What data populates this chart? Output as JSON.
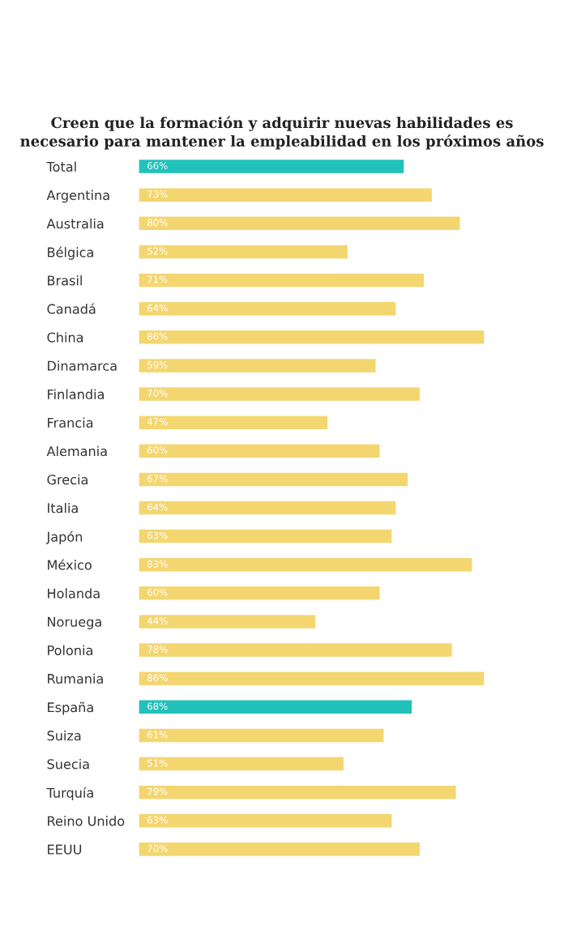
{
  "chart_data": {
    "type": "bar",
    "orientation": "horizontal",
    "title": "Creen que la formación y adquirir nuevas habilidades es\nnecesario para mantener la empleabilidad en los próximos años",
    "categories": [
      "Total",
      "Argentina",
      "Australia",
      "Bélgica",
      "Brasil",
      "Canadá",
      "China",
      "Dinamarca",
      "Finlandia",
      "Francia",
      "Alemania",
      "Grecia",
      "Italia",
      "Japón",
      "México",
      "Holanda",
      "Noruega",
      "Polonia",
      "Rumania",
      "España",
      "Suiza",
      "Suecia",
      "Turquía",
      "Reino Unido",
      "EEUU"
    ],
    "values": [
      66,
      73,
      80,
      52,
      71,
      64,
      86,
      59,
      70,
      47,
      60,
      67,
      64,
      63,
      83,
      60,
      44,
      78,
      86,
      68,
      61,
      51,
      79,
      63,
      70
    ],
    "value_labels": [
      "66%",
      "73%",
      "80%",
      "52%",
      "71%",
      "64%",
      "86%",
      "59%",
      "70%",
      "47%",
      "60%",
      "67%",
      "64%",
      "63%",
      "83%",
      "60%",
      "44%",
      "78%",
      "86%",
      "68%",
      "61%",
      "51%",
      "79%",
      "63%",
      "70%"
    ],
    "colors": [
      "#22c1b9",
      "#f4d670",
      "#f4d670",
      "#f4d670",
      "#f4d670",
      "#f4d670",
      "#f4d670",
      "#f4d670",
      "#f4d670",
      "#f4d670",
      "#f4d670",
      "#f4d670",
      "#f4d670",
      "#f4d670",
      "#f4d670",
      "#f4d670",
      "#f4d670",
      "#f4d670",
      "#f4d670",
      "#22c1b9",
      "#f4d670",
      "#f4d670",
      "#f4d670",
      "#f4d670",
      "#f4d670"
    ],
    "grid": false,
    "legend": false
  }
}
